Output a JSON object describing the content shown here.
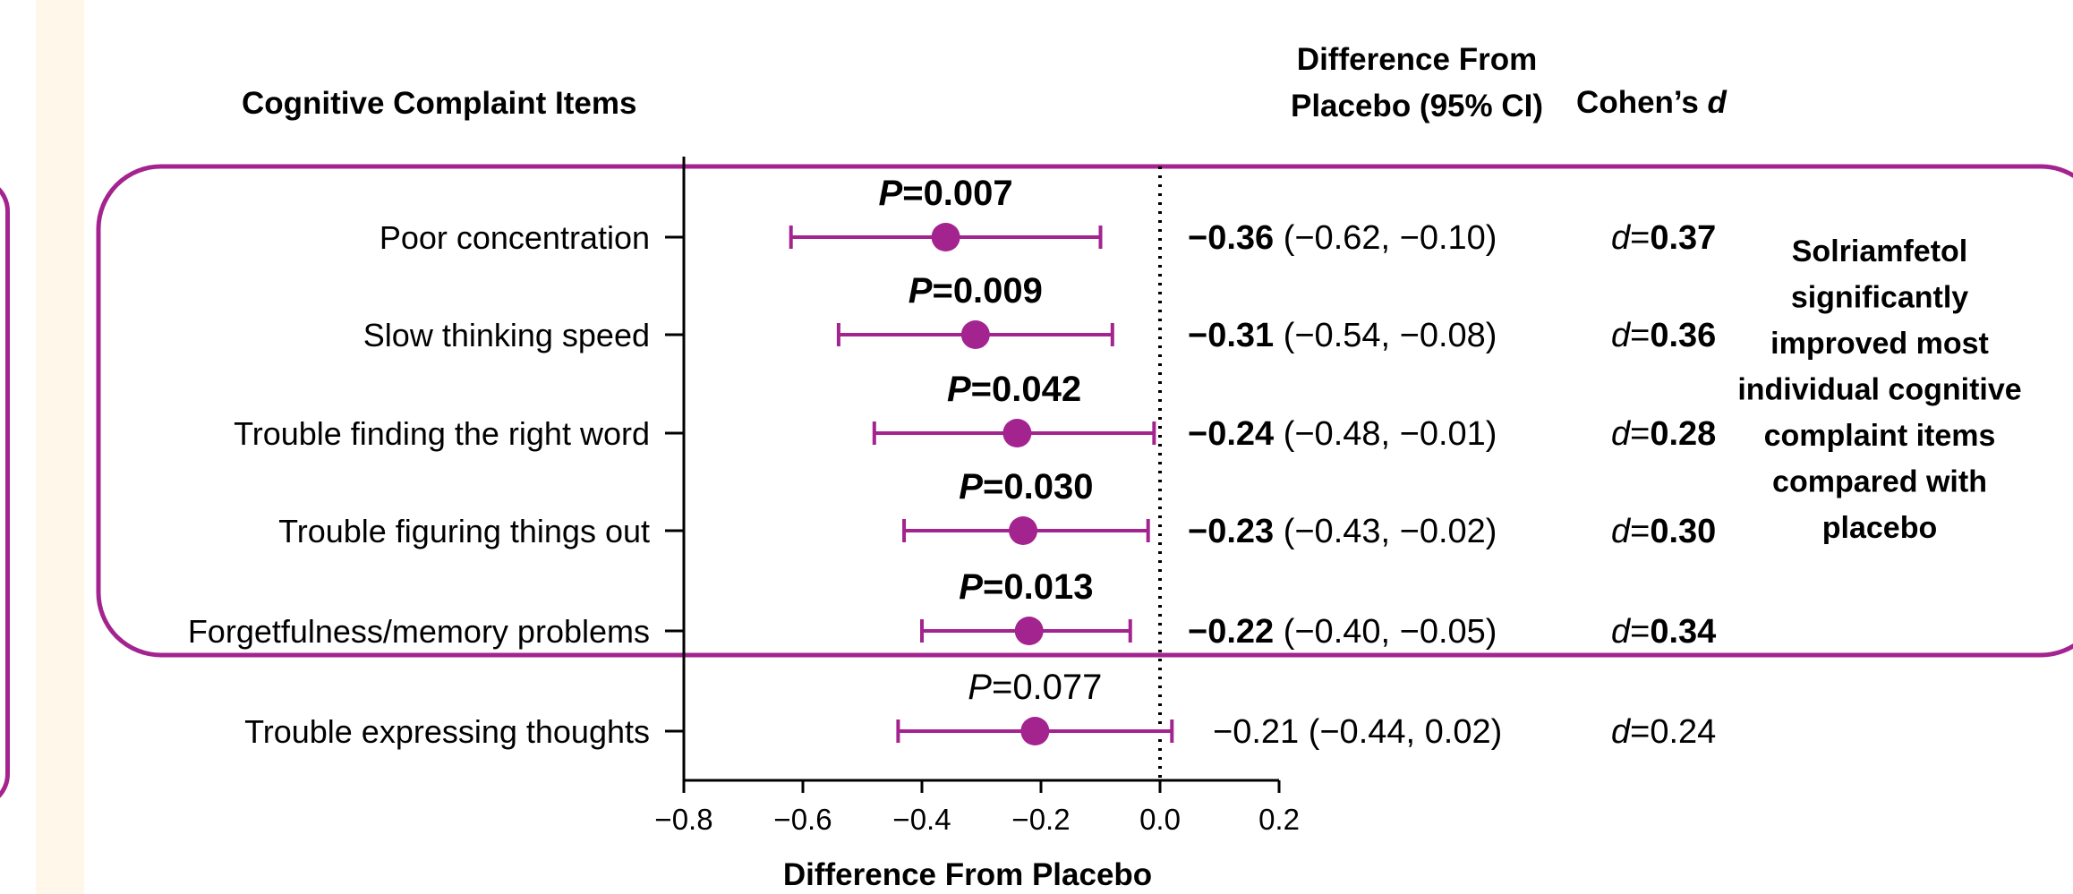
{
  "colors": {
    "accent": "#a3248f",
    "side_strip": "#fff8ea"
  },
  "headers": {
    "items": "Cognitive Complaint Items",
    "diff_line1": "Difference From",
    "diff_line2": "Placebo (95% CI)",
    "cohen_prefix": "Cohen’s ",
    "cohen_italic": "d"
  },
  "note_lines": [
    "Solriamfetol",
    "significantly",
    "improved most",
    "individual cognitive",
    "complaint items",
    "compared with",
    "placebo"
  ],
  "chart_data": {
    "type": "forest",
    "xlabel": "Difference From Placebo",
    "xlim": [
      -0.8,
      0.2
    ],
    "xticks": [
      -0.8,
      -0.6,
      -0.4,
      -0.2,
      0.0,
      0.2
    ],
    "xtick_labels": [
      "−0.8",
      "−0.6",
      "−0.4",
      "−0.2",
      "0.0",
      "0.2"
    ],
    "reference_line": 0.0,
    "rows": [
      {
        "label": "Poor concentration",
        "estimate": -0.36,
        "lower": -0.62,
        "upper": -0.1,
        "p_italic": "P",
        "p_value": "=0.007",
        "diff_bold": "−0.36",
        "ci_text": " (−0.62, −0.10)",
        "d_italic": "d",
        "d_eq": "=",
        "d_value": "0.37",
        "significant": true
      },
      {
        "label": "Slow thinking speed",
        "estimate": -0.31,
        "lower": -0.54,
        "upper": -0.08,
        "p_italic": "P",
        "p_value": "=0.009",
        "diff_bold": "−0.31",
        "ci_text": " (−0.54, −0.08)",
        "d_italic": "d",
        "d_eq": "=",
        "d_value": "0.36",
        "significant": true
      },
      {
        "label": "Trouble finding the right word",
        "estimate": -0.24,
        "lower": -0.48,
        "upper": -0.01,
        "p_italic": "P",
        "p_value": "=0.042",
        "diff_bold": "−0.24",
        "ci_text": " (−0.48, −0.01)",
        "d_italic": "d",
        "d_eq": "=",
        "d_value": "0.28",
        "significant": true
      },
      {
        "label": "Trouble figuring things out",
        "estimate": -0.23,
        "lower": -0.43,
        "upper": -0.02,
        "p_italic": "P",
        "p_value": "=0.030",
        "diff_bold": "−0.23",
        "ci_text": " (−0.43, −0.02)",
        "d_italic": "d",
        "d_eq": "=",
        "d_value": "0.30",
        "significant": true
      },
      {
        "label": "Forgetfulness/memory problems",
        "estimate": -0.22,
        "lower": -0.4,
        "upper": -0.05,
        "p_italic": "P",
        "p_value": "=0.013",
        "diff_bold": "−0.22",
        "ci_text": " (−0.40, −0.05)",
        "d_italic": "d",
        "d_eq": "=",
        "d_value": "0.34",
        "significant": true
      },
      {
        "label": "Trouble expressing thoughts",
        "estimate": -0.21,
        "lower": -0.44,
        "upper": 0.02,
        "p_italic": "P",
        "p_value": "=0.077",
        "diff_bold": "",
        "ci_text": "−0.21 (−0.44, 0.02)",
        "d_italic": "d",
        "d_eq": "=",
        "d_value": "0.24",
        "significant": false
      }
    ]
  }
}
